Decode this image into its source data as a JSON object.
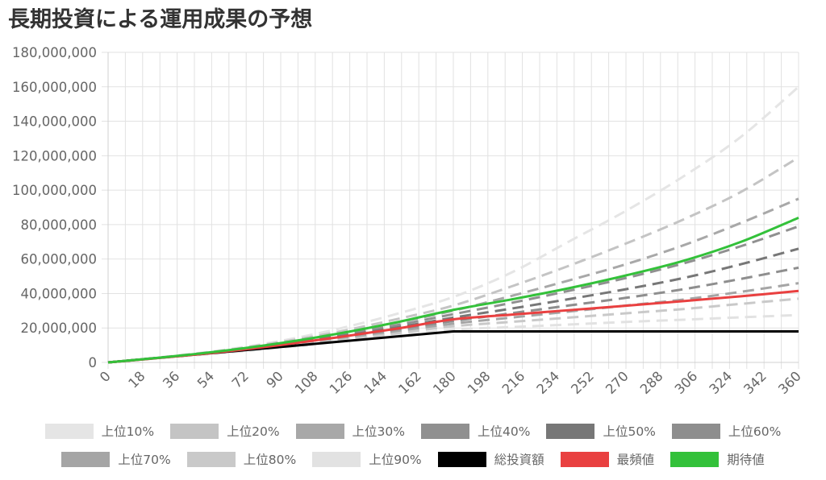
{
  "chart_data": {
    "type": "line",
    "title": "長期投資による運用成果の予想",
    "xlabel": "",
    "ylabel": "",
    "x_ticks": [
      0,
      18,
      36,
      54,
      72,
      90,
      108,
      126,
      144,
      162,
      180,
      198,
      216,
      234,
      252,
      270,
      288,
      306,
      324,
      342,
      360
    ],
    "y_ticks": [
      "0",
      "20,000,000",
      "40,000,000",
      "60,000,000",
      "80,000,000",
      "100,000,000",
      "120,000,000",
      "140,000,000",
      "160,000,000",
      "180,000,000"
    ],
    "xlim": [
      0,
      360
    ],
    "ylim": [
      0,
      180000000
    ],
    "grid": true,
    "legend_position": "bottom",
    "series": [
      {
        "name": "上位10%",
        "color": "#e5e5e5",
        "dashed": true,
        "points": [
          [
            0,
            0
          ],
          [
            30,
            3300000
          ],
          [
            60,
            7200000
          ],
          [
            90,
            12500000
          ],
          [
            120,
            19500000
          ],
          [
            150,
            28000000
          ],
          [
            180,
            38000000
          ],
          [
            210,
            52000000
          ],
          [
            240,
            70000000
          ],
          [
            270,
            88000000
          ],
          [
            300,
            108000000
          ],
          [
            330,
            131000000
          ],
          [
            360,
            160000000
          ]
        ]
      },
      {
        "name": "上位20%",
        "color": "#c4c4c4",
        "dashed": true,
        "points": [
          [
            0,
            0
          ],
          [
            30,
            3200000
          ],
          [
            60,
            6900000
          ],
          [
            90,
            11800000
          ],
          [
            120,
            17800000
          ],
          [
            150,
            25000000
          ],
          [
            180,
            33000000
          ],
          [
            210,
            44000000
          ],
          [
            240,
            56000000
          ],
          [
            270,
            69000000
          ],
          [
            300,
            83000000
          ],
          [
            330,
            99000000
          ],
          [
            360,
            119000000
          ]
        ]
      },
      {
        "name": "上位30%",
        "color": "#a8a8a8",
        "dashed": true,
        "points": [
          [
            0,
            0
          ],
          [
            30,
            3100000
          ],
          [
            60,
            6700000
          ],
          [
            90,
            11200000
          ],
          [
            120,
            16700000
          ],
          [
            150,
            23000000
          ],
          [
            180,
            30000000
          ],
          [
            210,
            38500000
          ],
          [
            240,
            47500000
          ],
          [
            270,
            57000000
          ],
          [
            300,
            68000000
          ],
          [
            330,
            81000000
          ],
          [
            360,
            95000000
          ]
        ]
      },
      {
        "name": "上位40%",
        "color": "#909090",
        "dashed": true,
        "points": [
          [
            0,
            0
          ],
          [
            30,
            3050000
          ],
          [
            60,
            6500000
          ],
          [
            90,
            10800000
          ],
          [
            120,
            15800000
          ],
          [
            150,
            21500000
          ],
          [
            180,
            28000000
          ],
          [
            210,
            34500000
          ],
          [
            240,
            41500000
          ],
          [
            270,
            49000000
          ],
          [
            300,
            57500000
          ],
          [
            330,
            67500000
          ],
          [
            360,
            79000000
          ]
        ]
      },
      {
        "name": "上位50%",
        "color": "#777777",
        "dashed": true,
        "points": [
          [
            0,
            0
          ],
          [
            30,
            3000000
          ],
          [
            60,
            6300000
          ],
          [
            90,
            10300000
          ],
          [
            120,
            15000000
          ],
          [
            150,
            20200000
          ],
          [
            180,
            26000000
          ],
          [
            210,
            31200000
          ],
          [
            240,
            36700000
          ],
          [
            270,
            42500000
          ],
          [
            300,
            49000000
          ],
          [
            330,
            57000000
          ],
          [
            360,
            66000000
          ]
        ]
      },
      {
        "name": "上位60%",
        "color": "#8e8e8e",
        "dashed": true,
        "points": [
          [
            0,
            0
          ],
          [
            30,
            2950000
          ],
          [
            60,
            6100000
          ],
          [
            90,
            9900000
          ],
          [
            120,
            14200000
          ],
          [
            150,
            19000000
          ],
          [
            180,
            24000000
          ],
          [
            210,
            28500000
          ],
          [
            240,
            33000000
          ],
          [
            270,
            37500000
          ],
          [
            300,
            42500000
          ],
          [
            330,
            48500000
          ],
          [
            360,
            55000000
          ]
        ]
      },
      {
        "name": "上位70%",
        "color": "#a5a5a5",
        "dashed": true,
        "points": [
          [
            0,
            0
          ],
          [
            30,
            2900000
          ],
          [
            60,
            5900000
          ],
          [
            90,
            9500000
          ],
          [
            120,
            13500000
          ],
          [
            150,
            17800000
          ],
          [
            180,
            22500000
          ],
          [
            210,
            26000000
          ],
          [
            240,
            29500000
          ],
          [
            270,
            33000000
          ],
          [
            300,
            36500000
          ],
          [
            330,
            41000000
          ],
          [
            360,
            46000000
          ]
        ]
      },
      {
        "name": "上位80%",
        "color": "#c9c9c9",
        "dashed": true,
        "points": [
          [
            0,
            0
          ],
          [
            30,
            2850000
          ],
          [
            60,
            5700000
          ],
          [
            90,
            9100000
          ],
          [
            120,
            12800000
          ],
          [
            150,
            16800000
          ],
          [
            180,
            21000000
          ],
          [
            210,
            23500000
          ],
          [
            240,
            26000000
          ],
          [
            270,
            28500000
          ],
          [
            300,
            31000000
          ],
          [
            330,
            34000000
          ],
          [
            360,
            37000000
          ]
        ]
      },
      {
        "name": "上位90%",
        "color": "#e2e2e2",
        "dashed": true,
        "points": [
          [
            0,
            0
          ],
          [
            30,
            2800000
          ],
          [
            60,
            5500000
          ],
          [
            90,
            8600000
          ],
          [
            120,
            12000000
          ],
          [
            150,
            15500000
          ],
          [
            180,
            19000000
          ],
          [
            210,
            20500000
          ],
          [
            240,
            22000000
          ],
          [
            270,
            23500000
          ],
          [
            300,
            24800000
          ],
          [
            330,
            26200000
          ],
          [
            360,
            27500000
          ]
        ]
      },
      {
        "name": "総投資額",
        "color": "#000000",
        "dashed": false,
        "points": [
          [
            0,
            0
          ],
          [
            180,
            18000000
          ],
          [
            360,
            18000000
          ]
        ]
      },
      {
        "name": "最頻値",
        "color": "#e94040",
        "dashed": false,
        "points": [
          [
            0,
            0
          ],
          [
            30,
            2950000
          ],
          [
            60,
            6200000
          ],
          [
            90,
            10100000
          ],
          [
            120,
            14600000
          ],
          [
            150,
            19500000
          ],
          [
            180,
            25000000
          ],
          [
            210,
            27700000
          ],
          [
            240,
            30300000
          ],
          [
            270,
            32900000
          ],
          [
            300,
            35600000
          ],
          [
            330,
            38400000
          ],
          [
            360,
            41500000
          ]
        ]
      },
      {
        "name": "期待値",
        "color": "#33c13a",
        "dashed": false,
        "points": [
          [
            0,
            0
          ],
          [
            30,
            3100000
          ],
          [
            60,
            6700000
          ],
          [
            90,
            11200000
          ],
          [
            120,
            16700000
          ],
          [
            150,
            23200000
          ],
          [
            180,
            30500000
          ],
          [
            210,
            36500000
          ],
          [
            240,
            43000000
          ],
          [
            270,
            50500000
          ],
          [
            300,
            59000000
          ],
          [
            330,
            70000000
          ],
          [
            360,
            84000000
          ]
        ]
      }
    ]
  }
}
